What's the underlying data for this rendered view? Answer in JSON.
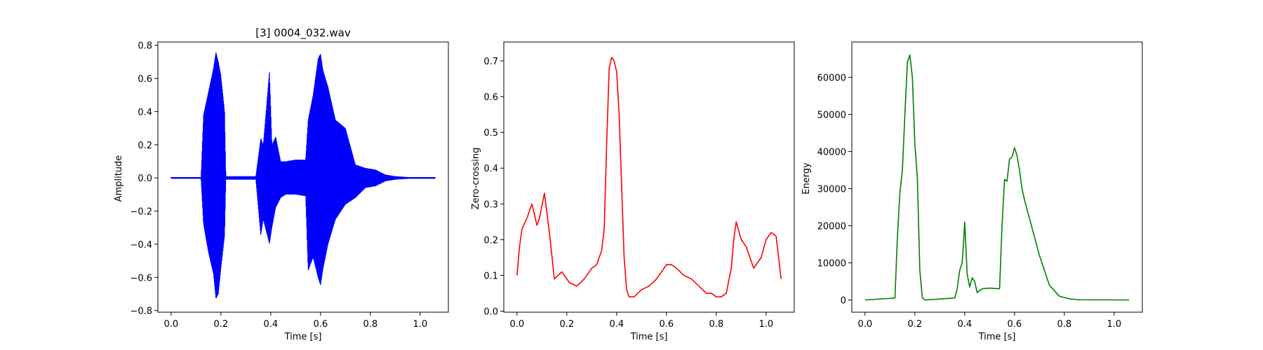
{
  "chart_data": [
    {
      "type": "line",
      "title": "[3] 0004_032.wav",
      "xlabel": "Time [s]",
      "ylabel": "Amplitude",
      "xlim": [
        -0.053,
        1.113
      ],
      "ylim": [
        -0.81,
        0.82
      ],
      "xticks": [
        "0.0",
        "0.2",
        "0.4",
        "0.6",
        "0.8",
        "1.0"
      ],
      "yticks": [
        "-0.8",
        "-0.6",
        "-0.4",
        "-0.2",
        "0.0",
        "0.2",
        "0.4",
        "0.6",
        "0.8"
      ],
      "color": "#0000ff",
      "grid": false,
      "envelope": {
        "x": [
          0.0,
          0.12,
          0.13,
          0.15,
          0.17,
          0.18,
          0.19,
          0.2,
          0.215,
          0.22,
          0.24,
          0.34,
          0.36,
          0.37,
          0.395,
          0.405,
          0.42,
          0.44,
          0.46,
          0.5,
          0.54,
          0.55,
          0.57,
          0.59,
          0.6,
          0.61,
          0.63,
          0.66,
          0.7,
          0.74,
          0.78,
          0.82,
          0.86,
          0.9,
          0.95,
          1.06
        ],
        "upper": [
          0.005,
          0.005,
          0.38,
          0.52,
          0.66,
          0.76,
          0.7,
          0.62,
          0.4,
          0.01,
          0.01,
          0.01,
          0.24,
          0.2,
          0.65,
          0.2,
          0.25,
          0.1,
          0.1,
          0.11,
          0.11,
          0.35,
          0.5,
          0.72,
          0.75,
          0.65,
          0.55,
          0.35,
          0.3,
          0.08,
          0.06,
          0.05,
          0.02,
          0.01,
          0.005,
          0.005
        ],
        "lower": [
          -0.005,
          -0.005,
          -0.28,
          -0.45,
          -0.58,
          -0.73,
          -0.7,
          -0.55,
          -0.35,
          -0.01,
          -0.01,
          -0.01,
          -0.35,
          -0.25,
          -0.4,
          -0.3,
          -0.18,
          -0.12,
          -0.1,
          -0.1,
          -0.11,
          -0.56,
          -0.48,
          -0.6,
          -0.65,
          -0.55,
          -0.4,
          -0.25,
          -0.16,
          -0.12,
          -0.06,
          -0.05,
          -0.02,
          -0.01,
          -0.005,
          -0.005
        ]
      }
    },
    {
      "type": "line",
      "title": "",
      "xlabel": "Time [s]",
      "ylabel": "Zero-crossing",
      "xlim": [
        -0.053,
        1.113
      ],
      "ylim": [
        -0.003,
        0.753
      ],
      "xticks": [
        "0.0",
        "0.2",
        "0.4",
        "0.6",
        "0.8",
        "1.0"
      ],
      "yticks": [
        "0.0",
        "0.1",
        "0.2",
        "0.3",
        "0.4",
        "0.5",
        "0.6",
        "0.7"
      ],
      "color": "#ff0000",
      "grid": false,
      "x": [
        0.0,
        0.01,
        0.02,
        0.04,
        0.06,
        0.08,
        0.09,
        0.11,
        0.13,
        0.15,
        0.18,
        0.21,
        0.24,
        0.27,
        0.3,
        0.32,
        0.34,
        0.35,
        0.36,
        0.37,
        0.38,
        0.39,
        0.4,
        0.41,
        0.42,
        0.43,
        0.44,
        0.45,
        0.47,
        0.5,
        0.53,
        0.56,
        0.58,
        0.6,
        0.62,
        0.64,
        0.67,
        0.7,
        0.73,
        0.76,
        0.78,
        0.8,
        0.82,
        0.84,
        0.86,
        0.87,
        0.88,
        0.9,
        0.92,
        0.95,
        0.98,
        1.0,
        1.02,
        1.04,
        1.05,
        1.06
      ],
      "y": [
        0.1,
        0.18,
        0.23,
        0.26,
        0.3,
        0.24,
        0.26,
        0.33,
        0.22,
        0.09,
        0.11,
        0.08,
        0.07,
        0.09,
        0.12,
        0.13,
        0.17,
        0.23,
        0.47,
        0.68,
        0.71,
        0.7,
        0.67,
        0.55,
        0.35,
        0.15,
        0.06,
        0.04,
        0.04,
        0.06,
        0.07,
        0.09,
        0.11,
        0.13,
        0.13,
        0.12,
        0.1,
        0.09,
        0.07,
        0.05,
        0.05,
        0.04,
        0.04,
        0.05,
        0.12,
        0.2,
        0.25,
        0.2,
        0.18,
        0.12,
        0.15,
        0.2,
        0.22,
        0.21,
        0.15,
        0.09
      ]
    },
    {
      "type": "line",
      "title": "",
      "xlabel": "Time [s]",
      "ylabel": "Energy",
      "xlim": [
        -0.053,
        1.113
      ],
      "ylim": [
        -3300,
        69500
      ],
      "xticks": [
        "0.0",
        "0.2",
        "0.4",
        "0.6",
        "0.8",
        "1.0"
      ],
      "yticks": [
        "0",
        "10000",
        "20000",
        "30000",
        "40000",
        "50000",
        "60000"
      ],
      "color": "#008000",
      "grid": false,
      "x": [
        0.0,
        0.12,
        0.13,
        0.14,
        0.15,
        0.16,
        0.17,
        0.18,
        0.19,
        0.2,
        0.21,
        0.22,
        0.23,
        0.24,
        0.36,
        0.37,
        0.38,
        0.39,
        0.395,
        0.4,
        0.41,
        0.42,
        0.43,
        0.44,
        0.45,
        0.47,
        0.5,
        0.54,
        0.55,
        0.56,
        0.57,
        0.58,
        0.59,
        0.6,
        0.61,
        0.62,
        0.63,
        0.64,
        0.66,
        0.7,
        0.74,
        0.78,
        0.82,
        0.86,
        1.06
      ],
      "y": [
        0,
        500,
        17000,
        29000,
        35000,
        50000,
        64000,
        66000,
        60000,
        42000,
        33000,
        8000,
        600,
        0,
        500,
        3000,
        8000,
        10000,
        15000,
        21000,
        7000,
        3500,
        6000,
        5000,
        2000,
        3000,
        3200,
        3000,
        20000,
        32500,
        32000,
        38000,
        38500,
        41000,
        39000,
        35000,
        30000,
        27000,
        22000,
        12000,
        4000,
        1000,
        300,
        50,
        0
      ]
    }
  ]
}
